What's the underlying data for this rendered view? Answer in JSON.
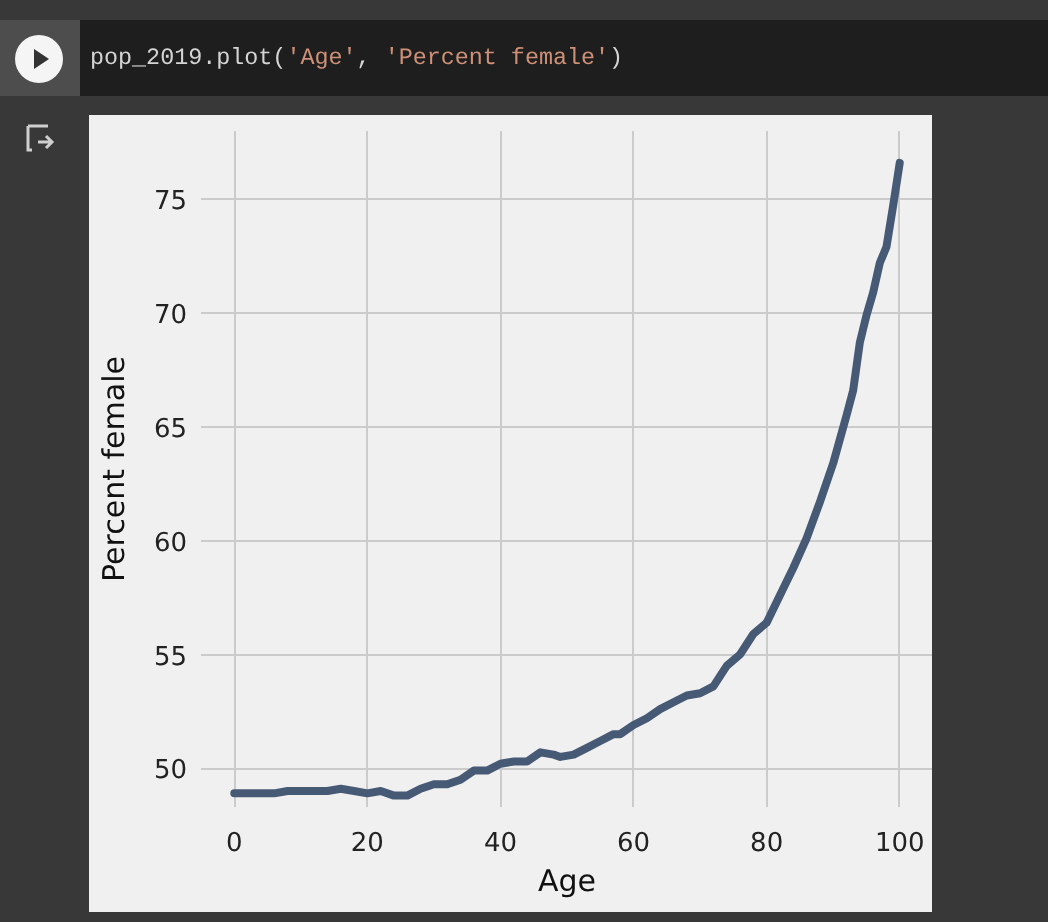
{
  "chart_data": {
    "type": "line",
    "xlabel": "Age",
    "ylabel": "Percent female",
    "annotations": [
      "pop_2019.plot('Age', 'Percent female')"
    ],
    "x": [
      0,
      2,
      4,
      6,
      8,
      10,
      12,
      14,
      16,
      18,
      20,
      22,
      24,
      26,
      28,
      30,
      32,
      34,
      36,
      38,
      40,
      42,
      44,
      46,
      48,
      49,
      51,
      53,
      55,
      57,
      58,
      60,
      62,
      64,
      66,
      68,
      70,
      72,
      74,
      76,
      78,
      80,
      82,
      84,
      86,
      88,
      90,
      92,
      93,
      94,
      95,
      96,
      97,
      98,
      99,
      100
    ],
    "series": [
      {
        "color": "#475a75",
        "values": [
          48.9,
          48.9,
          48.9,
          48.9,
          49.0,
          49.0,
          49.0,
          49.0,
          49.1,
          49.0,
          48.9,
          49.0,
          48.8,
          48.8,
          49.1,
          49.3,
          49.3,
          49.5,
          49.9,
          49.9,
          50.2,
          50.3,
          50.3,
          50.7,
          50.6,
          50.5,
          50.6,
          50.9,
          51.2,
          51.5,
          51.5,
          51.9,
          52.2,
          52.6,
          52.9,
          53.2,
          53.3,
          53.6,
          54.5,
          55.0,
          55.9,
          56.4,
          57.6,
          58.8,
          60.1,
          61.7,
          63.4,
          65.5,
          66.6,
          68.7,
          69.9,
          70.9,
          72.2,
          72.9,
          74.7,
          76.6
        ]
      }
    ],
    "xlim": [
      -5,
      105
    ],
    "ylim": [
      48.3,
      78
    ],
    "xticks": [
      0,
      20,
      40,
      60,
      80,
      100
    ],
    "yticks": [
      50,
      55,
      60,
      65,
      70,
      75
    ],
    "grid": true,
    "line_style": "solid"
  }
}
